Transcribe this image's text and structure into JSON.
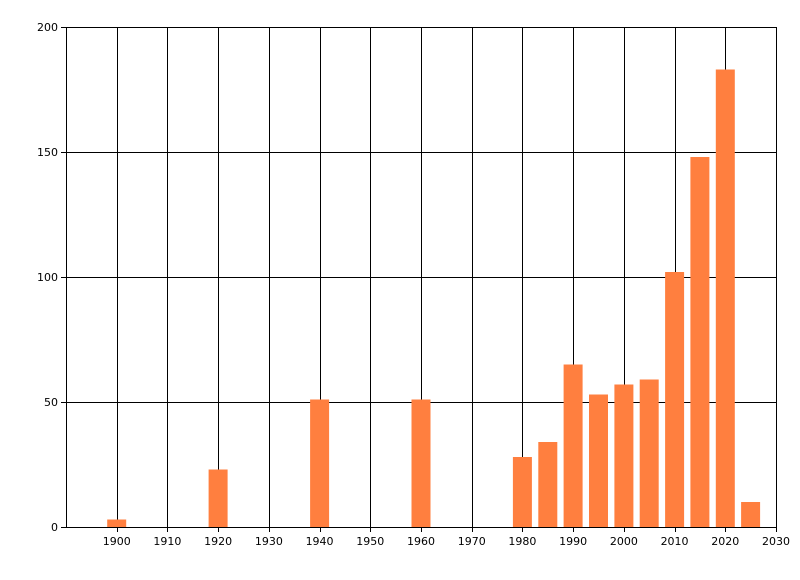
{
  "chart_data": {
    "type": "bar",
    "title": "",
    "xlabel": "",
    "ylabel": "",
    "bar_color": "#FF7F3F",
    "grid_color": "#000000",
    "grid": true,
    "xlim": [
      1890,
      2030
    ],
    "ylim": [
      0,
      200
    ],
    "x_ticks": [
      "1900",
      "1910",
      "1920",
      "1930",
      "1940",
      "1950",
      "1960",
      "1970",
      "1980",
      "1990",
      "2000",
      "2010",
      "2020",
      "2030"
    ],
    "x_tick_values": [
      1900,
      1910,
      1920,
      1930,
      1940,
      1950,
      1960,
      1970,
      1980,
      1990,
      2000,
      2010,
      2020,
      2030
    ],
    "y_ticks": [
      "0",
      "50",
      "100",
      "150",
      "200"
    ],
    "y_tick_values": [
      0,
      50,
      100,
      150,
      200
    ],
    "x": [
      1900,
      1920,
      1940,
      1960,
      1980,
      1985,
      1990,
      1995,
      2000,
      2005,
      2010,
      2015,
      2020,
      2025
    ],
    "values": [
      3,
      23,
      51,
      51,
      28,
      34,
      65,
      53,
      57,
      59,
      102,
      148,
      183,
      10
    ]
  }
}
